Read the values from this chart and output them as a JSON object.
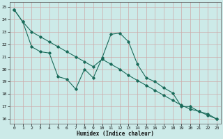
{
  "xlabel": "Humidex (Indice chaleur)",
  "background_color": "#cceae8",
  "grid_color": "#ccaaaa",
  "line_color": "#1a6b5a",
  "x_values": [
    0,
    1,
    2,
    3,
    4,
    5,
    6,
    7,
    8,
    9,
    10,
    11,
    12,
    13,
    14,
    15,
    16,
    17,
    18,
    19,
    20,
    21,
    22,
    23
  ],
  "line1_y": [
    24.8,
    23.8,
    21.8,
    21.4,
    21.3,
    19.4,
    19.2,
    18.4,
    20.0,
    19.3,
    20.9,
    22.8,
    22.9,
    22.2,
    20.4,
    19.3,
    19.0,
    18.5,
    18.1,
    17.0,
    17.0,
    16.6,
    16.3,
    16.0
  ],
  "line2_y": [
    24.8,
    23.8,
    23.0,
    22.6,
    22.2,
    21.8,
    21.4,
    21.0,
    20.6,
    20.2,
    20.8,
    20.4,
    20.0,
    19.5,
    19.1,
    18.7,
    18.3,
    17.9,
    17.5,
    17.1,
    16.8,
    16.6,
    16.4,
    16.0
  ],
  "ylim": [
    15.6,
    25.4
  ],
  "xlim": [
    -0.5,
    23.5
  ],
  "yticks": [
    16,
    17,
    18,
    19,
    20,
    21,
    22,
    23,
    24,
    25
  ],
  "xticks": [
    0,
    1,
    2,
    3,
    4,
    5,
    6,
    7,
    8,
    9,
    10,
    11,
    12,
    13,
    14,
    15,
    16,
    17,
    18,
    19,
    20,
    21,
    22,
    23
  ]
}
